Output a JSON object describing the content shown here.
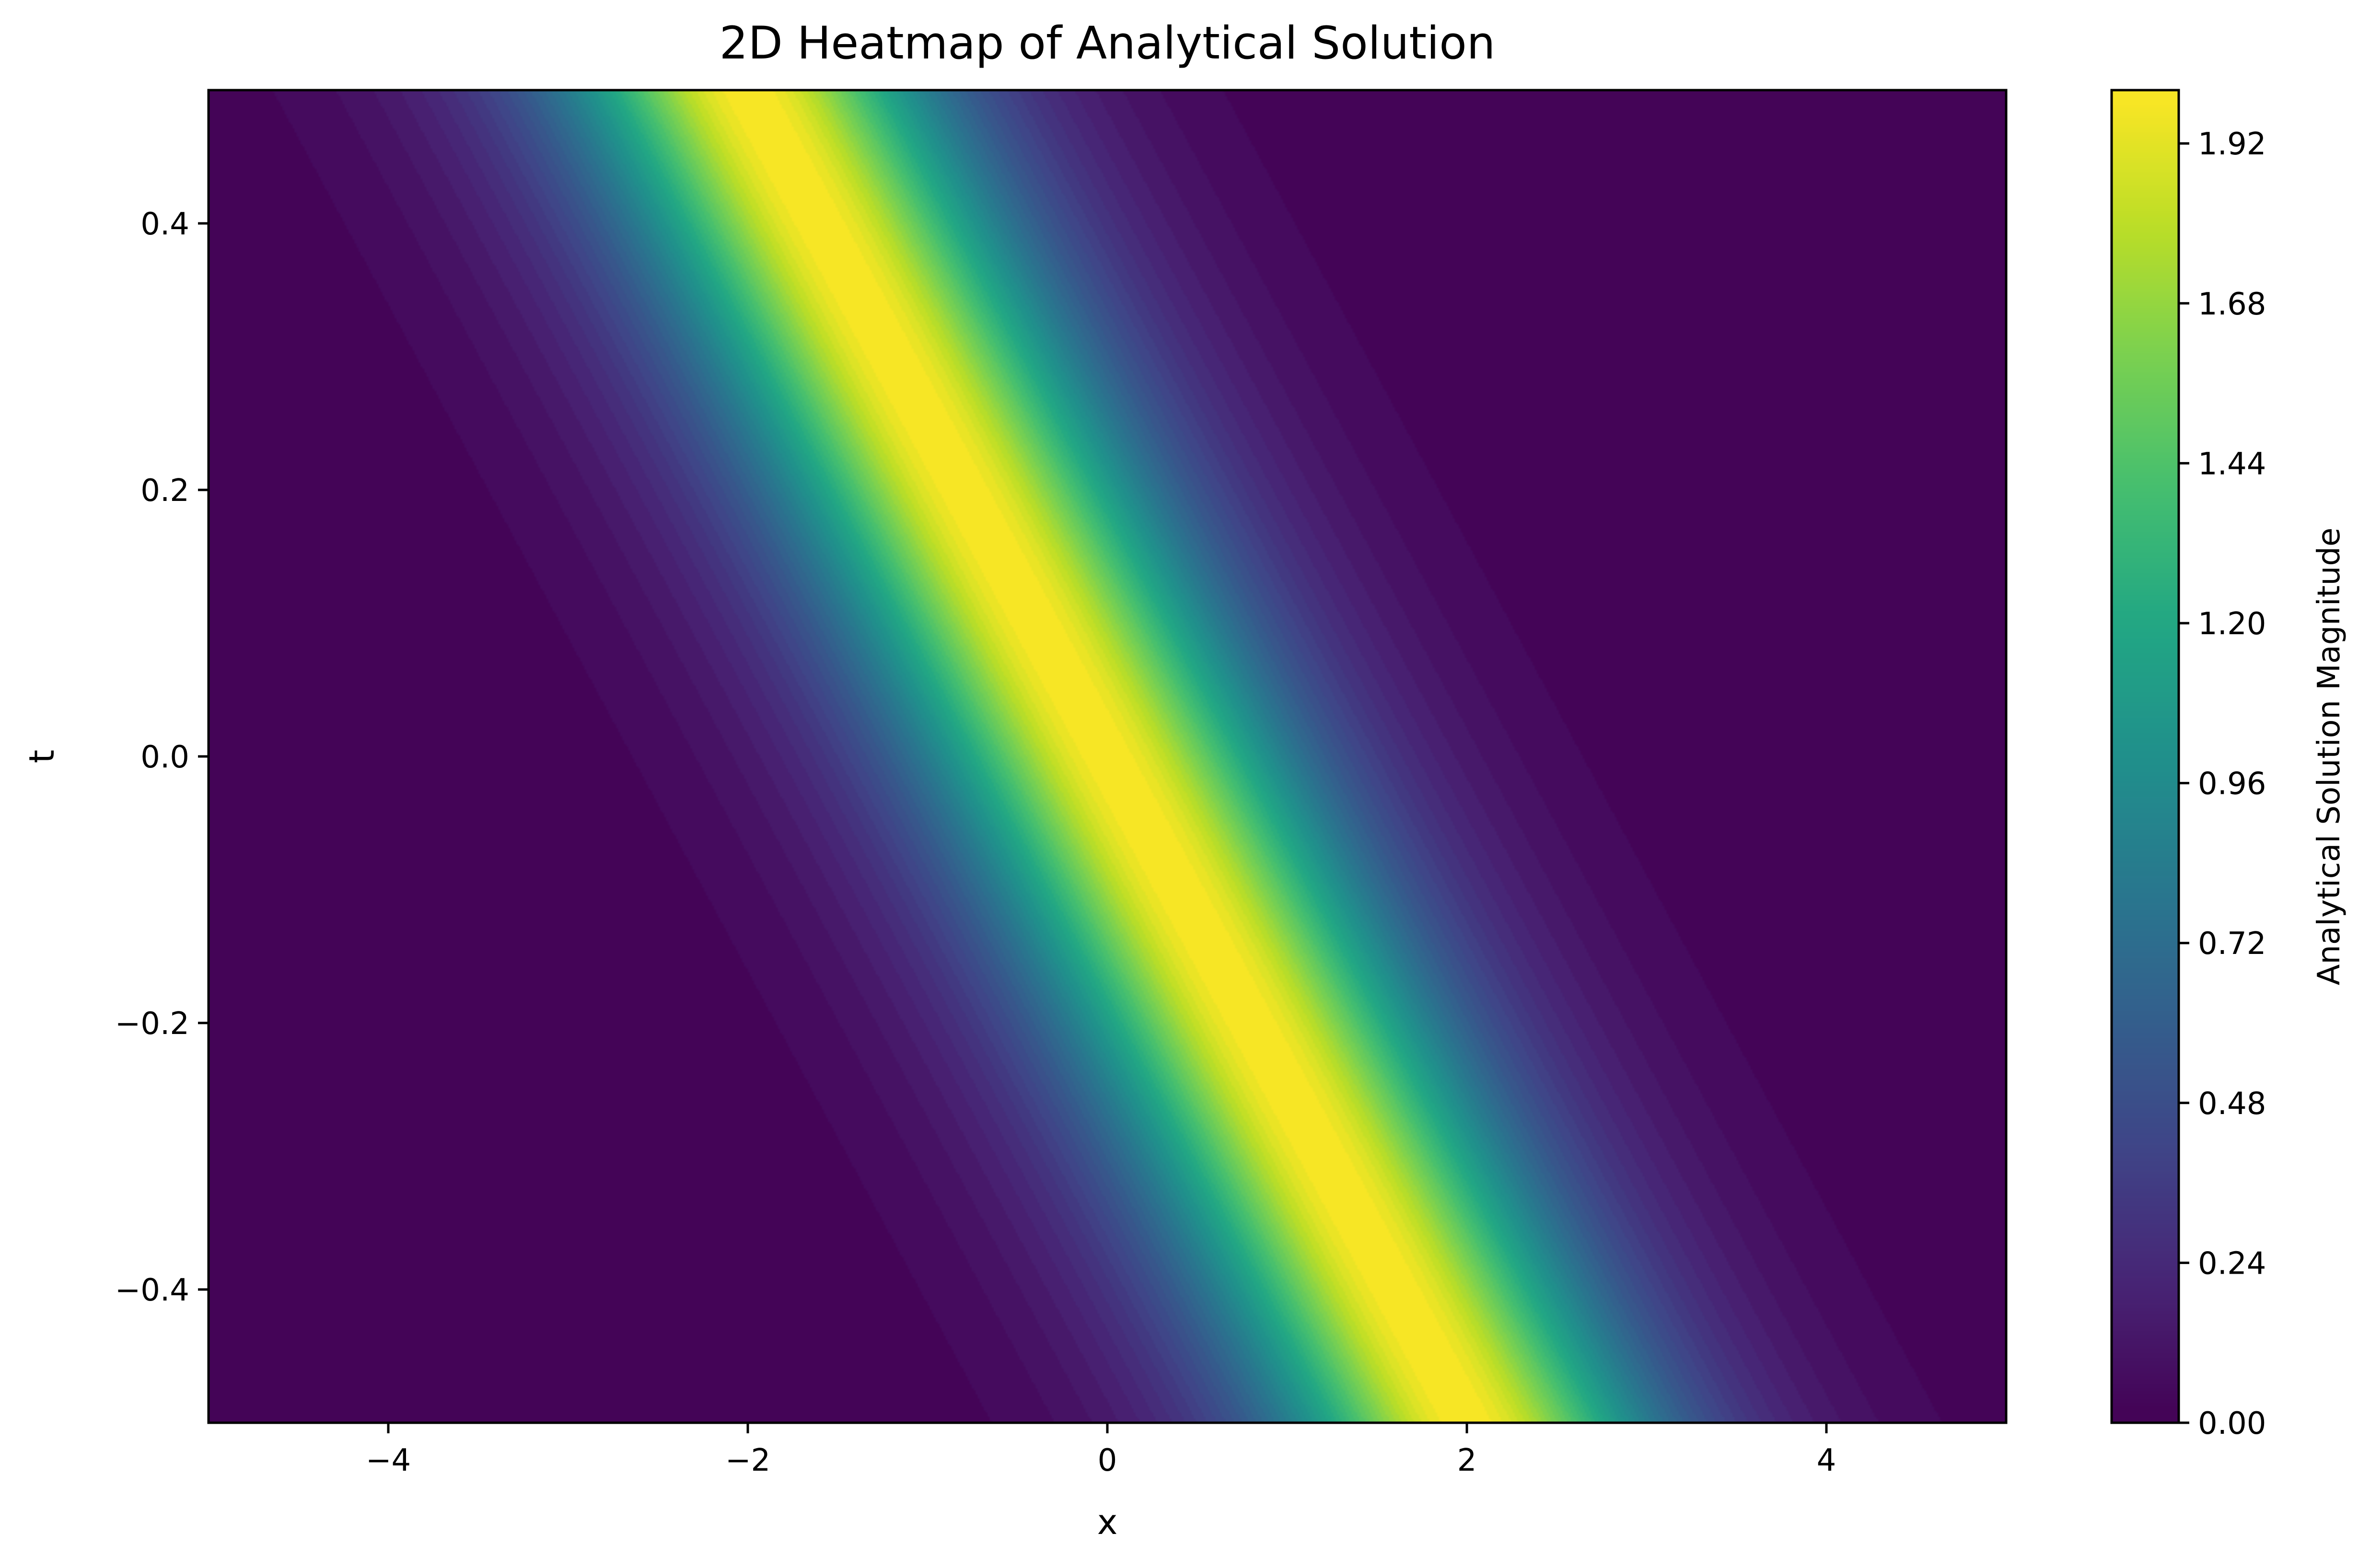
{
  "chart_data": {
    "type": "heatmap",
    "title": "2D Heatmap of Analytical Solution",
    "xlabel": "x",
    "ylabel": "t",
    "xlim": [
      -5,
      5
    ],
    "ylim": [
      -0.5,
      0.5
    ],
    "x_ticks": [
      {
        "value": -4,
        "label": "−4"
      },
      {
        "value": -2,
        "label": "−2"
      },
      {
        "value": 0,
        "label": "0"
      },
      {
        "value": 2,
        "label": "2"
      },
      {
        "value": 4,
        "label": "4"
      }
    ],
    "y_ticks": [
      {
        "value": -0.4,
        "label": "−0.4"
      },
      {
        "value": -0.2,
        "label": "−0.2"
      },
      {
        "value": 0.0,
        "label": "0.0"
      },
      {
        "value": 0.2,
        "label": "0.2"
      },
      {
        "value": 0.4,
        "label": "0.4"
      }
    ],
    "colorbar": {
      "label": "Analytical Solution Magnitude",
      "colormap": "viridis",
      "range": [
        0,
        2.0
      ],
      "levels": 50,
      "ticks": [
        {
          "value": 0.0,
          "label": "0.00"
        },
        {
          "value": 0.24,
          "label": "0.24"
        },
        {
          "value": 0.48,
          "label": "0.48"
        },
        {
          "value": 0.72,
          "label": "0.72"
        },
        {
          "value": 0.96,
          "label": "0.96"
        },
        {
          "value": 1.2,
          "label": "1.20"
        },
        {
          "value": 1.44,
          "label": "1.44"
        },
        {
          "value": 1.68,
          "label": "1.68"
        },
        {
          "value": 1.92,
          "label": "1.92"
        }
      ]
    },
    "field": {
      "description_form": "u(x,t) = peak * sech^2(width_factor * (x - speed * t))",
      "peak": 2.0,
      "speed": -4.0,
      "width_factor": 1.0
    },
    "grid": false
  }
}
